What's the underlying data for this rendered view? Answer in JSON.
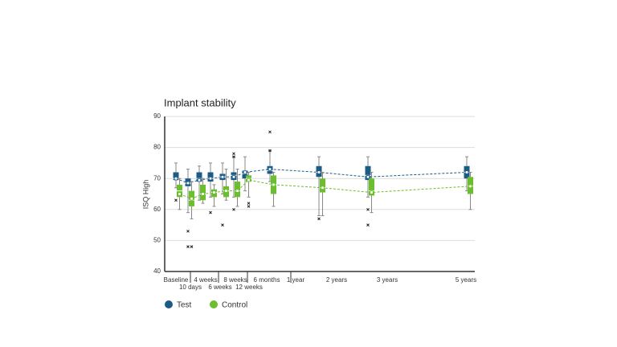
{
  "chart_data": {
    "type": "box",
    "title": "Implant stability",
    "y_label": "ISQ High",
    "categories": [
      "Baseline",
      "10 days",
      "4 weeks",
      "6 weeks",
      "8 weeks",
      "12 weeks",
      "6 months",
      "1 year",
      "2 years",
      "3 years",
      "5 years"
    ],
    "ylim": [
      40,
      90
    ],
    "yticks": [
      40,
      50,
      60,
      70,
      80,
      90
    ],
    "grid": true,
    "series": [
      {
        "name": "Test",
        "color": "#1d5b87",
        "min": [
          67,
          59,
          63,
          64,
          65,
          64,
          66,
          69,
          58,
          64,
          66
        ],
        "q1": [
          69.5,
          67.5,
          69,
          69,
          69.5,
          69.5,
          70,
          71.5,
          70.5,
          69.5,
          70
        ],
        "median": [
          70,
          68.5,
          70,
          70,
          70.5,
          71,
          71.5,
          72.5,
          72,
          71,
          72
        ],
        "q3": [
          72,
          70,
          72,
          72,
          71.5,
          72,
          72.5,
          74,
          74,
          74,
          74
        ],
        "max": [
          75,
          73,
          74,
          75,
          75,
          77,
          77,
          79,
          77,
          77,
          77
        ],
        "mean": [
          70,
          68.5,
          69.5,
          70,
          70.5,
          70.5,
          72,
          73,
          72,
          70.5,
          72
        ],
        "outliers": [
          [
            63
          ],
          [
            53,
            48
          ],
          [],
          [
            59
          ],
          [
            55
          ],
          [
            77,
            78,
            60
          ],
          [],
          [
            85,
            79
          ],
          [
            57
          ],
          [
            60,
            55
          ],
          []
        ]
      },
      {
        "name": "Control",
        "color": "#6bbf2c",
        "min": [
          60,
          57,
          62,
          61,
          63,
          61,
          64,
          61,
          58,
          59,
          60
        ],
        "q1": [
          64,
          61,
          63,
          64,
          64,
          64,
          69,
          65,
          65.5,
          64.5,
          65
        ],
        "median": [
          66,
          63,
          65,
          65.5,
          66,
          66,
          70,
          68,
          67,
          66,
          67.5
        ],
        "q3": [
          68,
          66,
          68,
          66.5,
          67.5,
          69,
          71,
          71,
          70,
          70,
          70.5
        ],
        "max": [
          70,
          69,
          70,
          68,
          73,
          73,
          72,
          72,
          72,
          72,
          72
        ],
        "mean": [
          65,
          63.5,
          65,
          65.5,
          66,
          66,
          69.5,
          68,
          67,
          65.5,
          67.5
        ],
        "outliers": [
          [],
          [
            48
          ],
          [],
          [],
          [],
          [],
          [
            62,
            61
          ],
          [],
          [],
          [],
          []
        ]
      }
    ]
  }
}
